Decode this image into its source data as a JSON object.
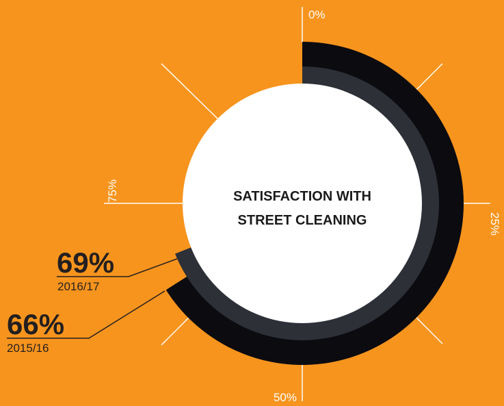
{
  "chart_data": {
    "type": "radial-bar",
    "title": "SATISFACTION WITH STREET CLEANING",
    "title_lines": [
      "SATISFACTION WITH",
      "STREET CLEANING"
    ],
    "ticks": [
      "0%",
      "25%",
      "50%",
      "75%"
    ],
    "series": [
      {
        "year": "2015/16",
        "value": 66,
        "label": "66%",
        "color": "#0b0b10"
      },
      {
        "year": "2016/17",
        "value": 69,
        "label": "69%",
        "color": "#2e3038"
      }
    ]
  },
  "colors": {
    "background": "#f7941d",
    "center": "#ffffff",
    "lines": "#ffffff",
    "leader": "#231f20"
  }
}
